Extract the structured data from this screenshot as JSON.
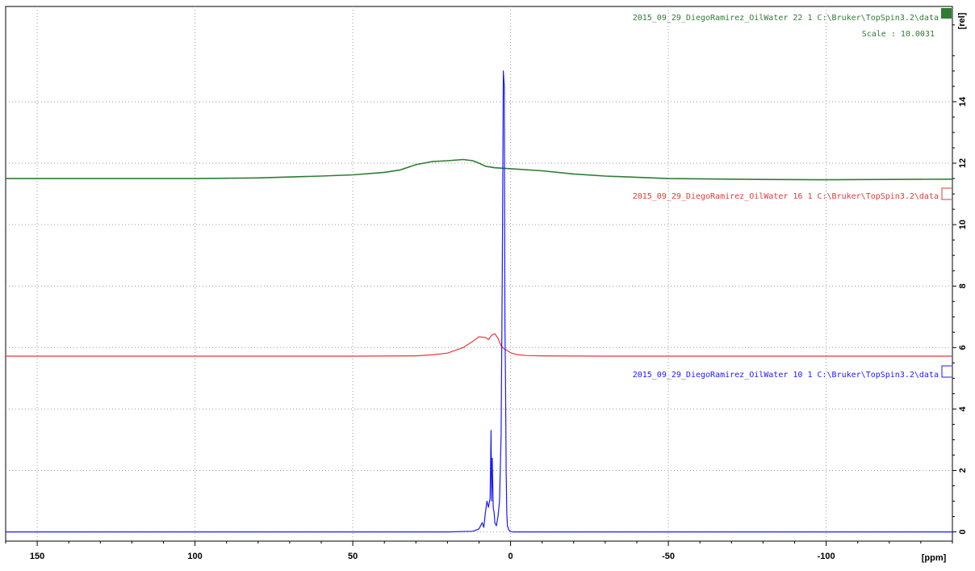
{
  "chart_data": {
    "type": "line",
    "title": "",
    "xlabel": "[ppm]",
    "ylabel": "[rel]",
    "xlim": [
      160,
      -140
    ],
    "ylim": [
      -0.3,
      17.1
    ],
    "x_ticks": [
      "150",
      "100",
      "50",
      "0",
      "-50",
      "-100"
    ],
    "y_ticks": [
      "0",
      "2",
      "4",
      "6",
      "8",
      "10",
      "12",
      "14"
    ],
    "grid": true,
    "legend": "right",
    "series": [
      {
        "name": "2015_09_29_DiegoRamirez_OilWater  22  1  C:\\Bruker\\TopSpin3.2\\data",
        "scale_text": "Scale : 10.0031",
        "color": "#2e7d32",
        "x": [
          160,
          140,
          100,
          80,
          60,
          50,
          40,
          35,
          30,
          25,
          20,
          15,
          12,
          10,
          8,
          5,
          0,
          -10,
          -20,
          -30,
          -50,
          -80,
          -100,
          -140
        ],
        "y": [
          11.5,
          11.5,
          11.5,
          11.52,
          11.58,
          11.62,
          11.7,
          11.78,
          11.95,
          12.05,
          12.08,
          12.12,
          12.08,
          12.0,
          11.9,
          11.85,
          11.82,
          11.75,
          11.65,
          11.58,
          11.5,
          11.47,
          11.46,
          11.48
        ]
      },
      {
        "name": "2015_09_29_DiegoRamirez_OilWater  16  1  C:\\Bruker\\TopSpin3.2\\data",
        "color": "#e53935",
        "x": [
          160,
          100,
          50,
          30,
          25,
          20,
          15,
          12,
          10,
          8,
          7,
          6,
          5,
          4,
          3,
          2,
          1,
          0,
          -2,
          -5,
          -10,
          -30,
          -50,
          -100,
          -140
        ],
        "y": [
          5.72,
          5.72,
          5.72,
          5.73,
          5.76,
          5.82,
          6.0,
          6.2,
          6.35,
          6.33,
          6.26,
          6.4,
          6.45,
          6.3,
          6.05,
          5.95,
          5.9,
          5.83,
          5.77,
          5.74,
          5.73,
          5.72,
          5.72,
          5.72,
          5.72
        ]
      },
      {
        "name": "2015_09_29_DiegoRamirez_OilWater  10  1  C:\\Bruker\\TopSpin3.2\\data",
        "color": "#1a1aff",
        "x": [
          160,
          20,
          12,
          10,
          9,
          8.5,
          8,
          7.5,
          7,
          6.5,
          6.2,
          6,
          5.8,
          5.5,
          5.2,
          5,
          4.5,
          4,
          3.5,
          3,
          2.6,
          2.3,
          2.0,
          1.8,
          1.6,
          1.4,
          1.2,
          1.0,
          0.5,
          0,
          -1,
          -5,
          -20,
          -140
        ],
        "y": [
          0,
          0,
          0.02,
          0.1,
          0.3,
          0.15,
          0.6,
          1.0,
          0.8,
          1.1,
          3.3,
          1.0,
          2.4,
          0.8,
          0.6,
          0.3,
          0.2,
          0.5,
          1.0,
          3.2,
          8.8,
          15.0,
          14.5,
          6.7,
          5.0,
          2.0,
          0.6,
          0.2,
          0.05,
          0.01,
          0,
          0,
          0,
          0
        ]
      }
    ]
  }
}
